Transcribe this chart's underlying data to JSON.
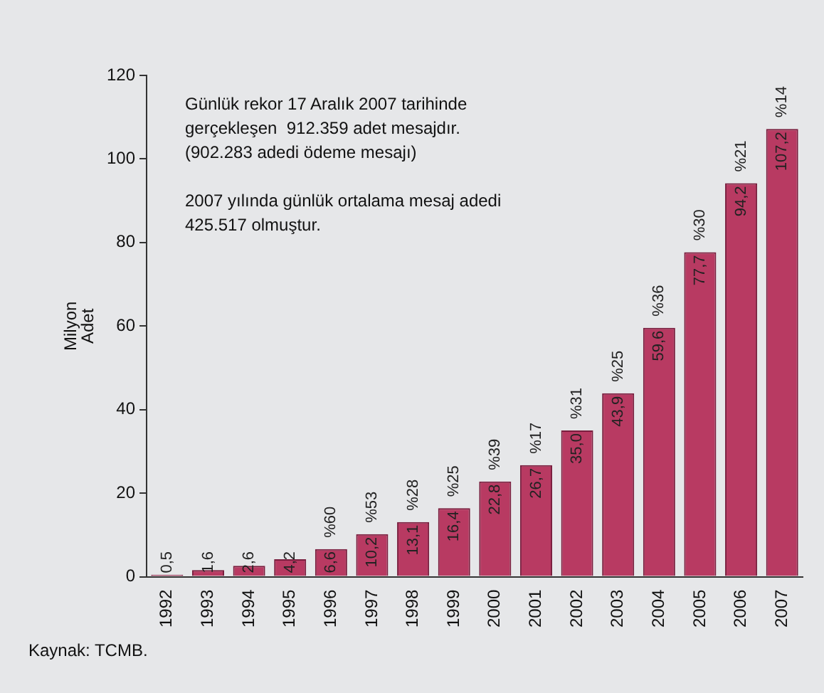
{
  "chart_data": {
    "type": "bar",
    "ylabel": "Milyon Adet",
    "categories": [
      "1992",
      "1993",
      "1994",
      "1995",
      "1996",
      "1997",
      "1998",
      "1999",
      "2000",
      "2001",
      "2002",
      "2003",
      "2004",
      "2005",
      "2006",
      "2007"
    ],
    "values": [
      0.5,
      1.6,
      2.6,
      4.2,
      6.6,
      10.2,
      13.1,
      16.4,
      22.8,
      26.7,
      35.0,
      43.9,
      59.6,
      77.7,
      94.2,
      107.2
    ],
    "value_labels": [
      "0,5",
      "1,6",
      "2,6",
      "4,2",
      "6,6",
      "10,2",
      "13,1",
      "16,4",
      "22,8",
      "26,7",
      "35,0",
      "43,9",
      "59,6",
      "77,7",
      "94,2",
      "107,2"
    ],
    "color": "#b83a62",
    "ylim": [
      0,
      120
    ],
    "yticks": [
      0,
      20,
      40,
      60,
      80,
      100,
      120
    ],
    "grid": false,
    "legend": false,
    "annotations": [
      "Günlük rekor 17 Aralık 2007 tarihinde\ngerçekleşen  912.359 adet mesajdır.\n(902.283 adedi ödeme mesajı)\n\n2007 yılında günlük ortalama mesaj adedi\n425.517 olmuştur.",
      {
        "text": "%60",
        "x": "1996",
        "y": 6.6
      },
      {
        "text": "%53",
        "x": "1997",
        "y": 10.2
      },
      {
        "text": "%28",
        "x": "1998",
        "y": 13.1
      },
      {
        "text": "%25",
        "x": "1999",
        "y": 16.4
      },
      {
        "text": "%39",
        "x": "2000",
        "y": 22.8
      },
      {
        "text": "%17",
        "x": "2001",
        "y": 26.7
      },
      {
        "text": "%31",
        "x": "2002",
        "y": 35.0
      },
      {
        "text": "%25",
        "x": "2003",
        "y": 43.9
      },
      {
        "text": "%36",
        "x": "2004",
        "y": 59.6
      },
      {
        "text": "%30",
        "x": "2005",
        "y": 77.7
      },
      {
        "text": "%21",
        "x": "2006",
        "y": 94.2
      },
      {
        "text": "%14",
        "x": "2007",
        "y": 107.2
      },
      "Kaynak: TCMB."
    ]
  }
}
